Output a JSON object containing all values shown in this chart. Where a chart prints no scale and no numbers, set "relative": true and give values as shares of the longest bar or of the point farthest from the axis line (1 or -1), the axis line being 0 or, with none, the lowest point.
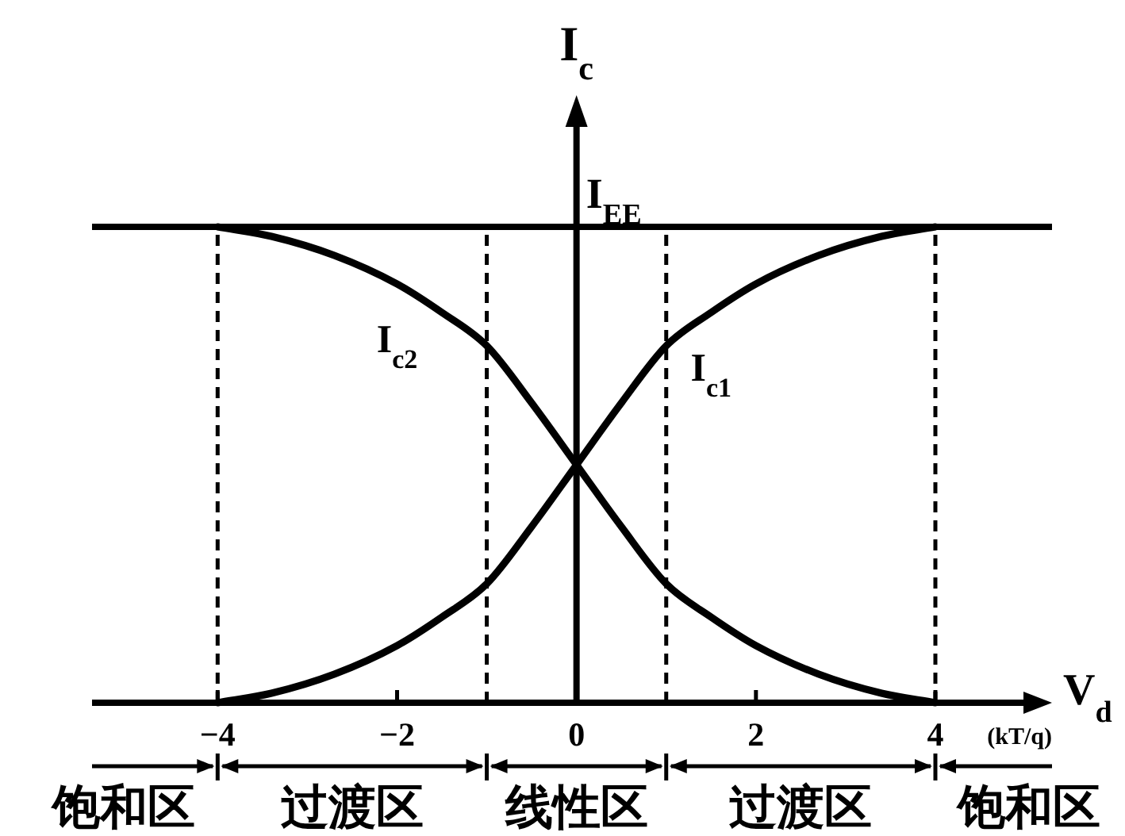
{
  "chart_data": {
    "type": "line",
    "relative": true,
    "xlabel": "V$_{d}$ (kT/q)",
    "ylabel": "I$_{c}$",
    "annotations": [
      "饱和区",
      "过渡区",
      "线性区",
      "过渡区",
      "饱和区"
    ],
    "tick_labels": "x",
    "x": [
      -4,
      -3.4,
      -2.7,
      -2,
      -1.5,
      -1,
      -0.5,
      0,
      0.5,
      1,
      1.5,
      2,
      2.7,
      3.4,
      4
    ],
    "series": [
      {
        "name": "I$_{c1}$",
        "color": "#000000",
        "values": [
          0,
          0.02,
          0.06,
          0.12,
          0.18,
          0.25,
          0.37,
          0.5,
          0.63,
          0.75,
          0.82,
          0.88,
          0.94,
          0.98,
          1
        ]
      },
      {
        "name": "I$_{c2}$",
        "color": "#000000",
        "values": [
          1,
          0.98,
          0.94,
          0.88,
          0.82,
          0.75,
          0.63,
          0.5,
          0.37,
          0.25,
          0.18,
          0.12,
          0.06,
          0.02,
          0
        ]
      }
    ],
    "xlim": [
      -5.4,
      5.3
    ],
    "xticks": [
      -4,
      -2,
      0,
      2,
      4
    ],
    "ref_lines": [
      {
        "axis": "y",
        "value": 1,
        "label": "I$_{EE}$",
        "color": "#000000",
        "line_style": "solid"
      },
      {
        "axis": "x",
        "value": -4,
        "line_style": "dashed"
      },
      {
        "axis": "x",
        "value": -1,
        "line_style": "dashed"
      },
      {
        "axis": "x",
        "value": 1,
        "line_style": "dashed"
      },
      {
        "axis": "x",
        "value": 4,
        "line_style": "dashed"
      }
    ]
  }
}
